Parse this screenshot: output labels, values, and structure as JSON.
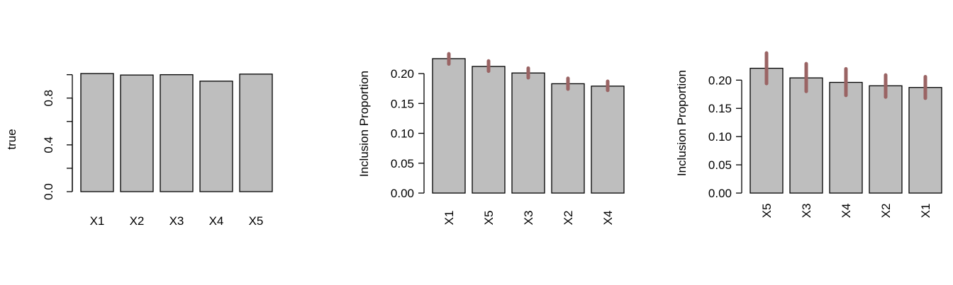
{
  "chart_data": [
    {
      "type": "bar",
      "ylabel": "true",
      "categories": [
        "X1",
        "X2",
        "X3",
        "X4",
        "X5"
      ],
      "values": [
        1.01,
        0.997,
        1.0,
        0.945,
        1.005
      ],
      "ylim": [
        0,
        1.04
      ],
      "yticks": [
        0.0,
        0.4,
        0.8
      ],
      "ytick_labels": [
        "0.0",
        "0.4",
        "0.8"
      ],
      "xlabel_orientation": "horizontal",
      "bar_color": "#bebebe"
    },
    {
      "type": "bar",
      "ylabel": "Inclusion Proportion",
      "categories": [
        "X1",
        "X5",
        "X3",
        "X2",
        "X4"
      ],
      "values": [
        0.225,
        0.212,
        0.201,
        0.183,
        0.179
      ],
      "error_low": [
        0.216,
        0.204,
        0.193,
        0.174,
        0.172
      ],
      "error_high": [
        0.233,
        0.221,
        0.209,
        0.192,
        0.187
      ],
      "ylim": [
        0,
        0.232
      ],
      "yticks": [
        0.0,
        0.05,
        0.1,
        0.15,
        0.2
      ],
      "ytick_labels": [
        "0.00",
        "0.05",
        "0.10",
        "0.15",
        "0.20"
      ],
      "xlabel_orientation": "vertical",
      "bar_color": "#bebebe",
      "error_color": "#9a6464"
    },
    {
      "type": "bar",
      "ylabel": "Inclusion Proportion",
      "categories": [
        "X5",
        "X3",
        "X4",
        "X2",
        "X1"
      ],
      "values": [
        0.221,
        0.204,
        0.196,
        0.19,
        0.187
      ],
      "error_low": [
        0.194,
        0.18,
        0.173,
        0.17,
        0.168
      ],
      "error_high": [
        0.248,
        0.229,
        0.22,
        0.209,
        0.206
      ],
      "ylim": [
        0,
        0.248
      ],
      "yticks": [
        0.0,
        0.05,
        0.1,
        0.15,
        0.2
      ],
      "ytick_labels": [
        "0.00",
        "0.05",
        "0.10",
        "0.15",
        "0.20"
      ],
      "xlabel_orientation": "vertical",
      "bar_color": "#bebebe",
      "error_color": "#9a6464"
    }
  ]
}
